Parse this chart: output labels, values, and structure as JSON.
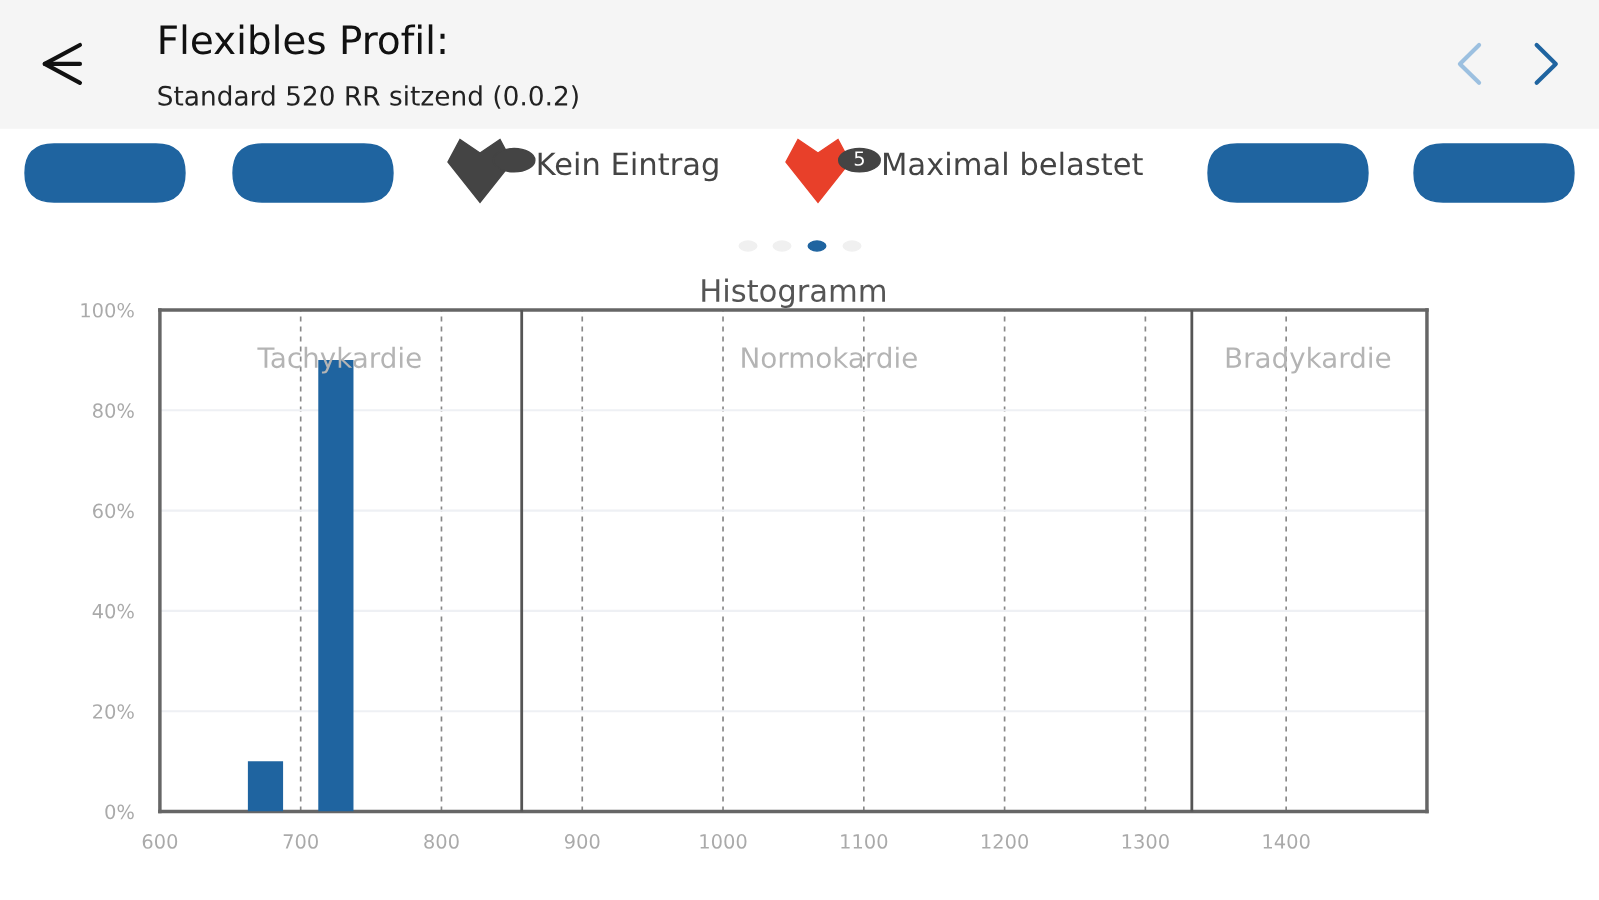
{
  "chart_data": {
    "type": "histogram",
    "title": "Histogramm",
    "bins": [
      662.5,
      687.5,
      712.5,
      737.5
    ],
    "values": [
      10,
      0,
      90
    ],
    "color": "#1f64a0",
    "xlim": [
      600,
      1500
    ],
    "xticks": [
      600,
      700,
      800,
      900,
      1000,
      1100,
      1200,
      1300,
      1400,
      {
        "value": 1500,
        "label": null
      }
    ],
    "ylim": [
      0,
      100
    ],
    "yticks": [
      {
        "value": 0,
        "label": "0%"
      },
      {
        "value": 20,
        "label": "20%"
      },
      {
        "value": 40,
        "label": "40%"
      },
      {
        "value": 60,
        "label": "60%"
      },
      {
        "value": 80,
        "label": "80%"
      },
      {
        "value": 100,
        "label": "100%"
      }
    ],
    "grid": true,
    "ref_lines": [
      {
        "axis": "x",
        "value": 857,
        "color": "#555555",
        "line_style": "solid"
      },
      {
        "axis": "x",
        "value": 1333,
        "color": "#555555",
        "line_style": "solid"
      }
    ],
    "annotations": [
      "Flexibles Profil:",
      "Standard 520 RR sitzend (0.0.2)",
      "Kein Eintrag",
      "5",
      "Maximal belastet",
      "Tachykardie",
      "Normokardie",
      "Bradykardie"
    ]
  }
}
